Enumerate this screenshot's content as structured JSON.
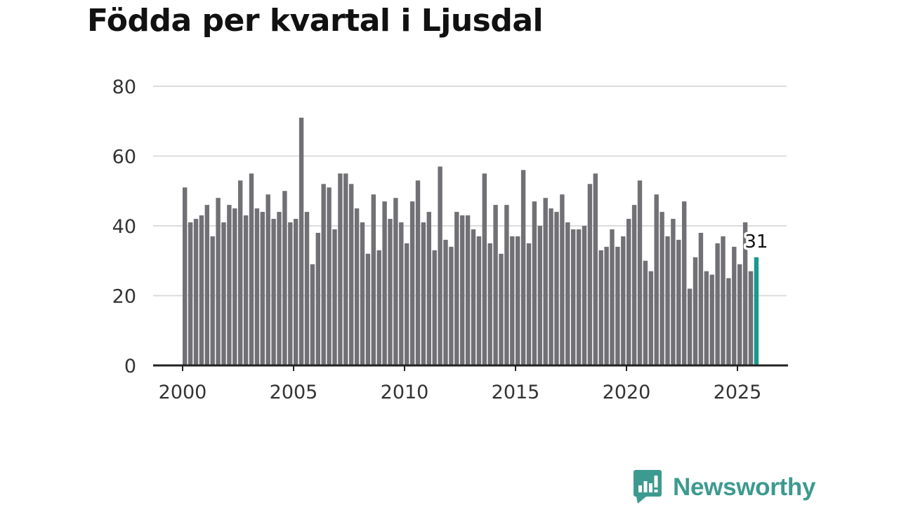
{
  "chart_data": {
    "type": "bar",
    "title": "Födda per kvartal i Ljusdal",
    "xlabel": "",
    "ylabel": "",
    "ylim": [
      0,
      80
    ],
    "yticks": [
      "0",
      "20",
      "40",
      "60",
      "80"
    ],
    "xticks": [
      "2000",
      "2005",
      "2010",
      "2015",
      "2020",
      "2025"
    ],
    "x_start_year": 2000,
    "categories": [
      "2000 Q1",
      "2000 Q2",
      "2000 Q3",
      "2000 Q4",
      "2001 Q1",
      "2001 Q2",
      "2001 Q3",
      "2001 Q4",
      "2002 Q1",
      "2002 Q2",
      "2002 Q3",
      "2002 Q4",
      "2003 Q1",
      "2003 Q2",
      "2003 Q3",
      "2003 Q4",
      "2004 Q1",
      "2004 Q2",
      "2004 Q3",
      "2004 Q4",
      "2005 Q1",
      "2005 Q2",
      "2005 Q3",
      "2005 Q4",
      "2006 Q1",
      "2006 Q2",
      "2006 Q3",
      "2006 Q4",
      "2007 Q1",
      "2007 Q2",
      "2007 Q3",
      "2007 Q4",
      "2008 Q1",
      "2008 Q2",
      "2008 Q3",
      "2008 Q4",
      "2009 Q1",
      "2009 Q2",
      "2009 Q3",
      "2009 Q4",
      "2010 Q1",
      "2010 Q2",
      "2010 Q3",
      "2010 Q4",
      "2011 Q1",
      "2011 Q2",
      "2011 Q3",
      "2011 Q4",
      "2012 Q1",
      "2012 Q2",
      "2012 Q3",
      "2012 Q4",
      "2013 Q1",
      "2013 Q2",
      "2013 Q3",
      "2013 Q4",
      "2014 Q1",
      "2014 Q2",
      "2014 Q3",
      "2014 Q4",
      "2015 Q1",
      "2015 Q2",
      "2015 Q3",
      "2015 Q4",
      "2016 Q1",
      "2016 Q2",
      "2016 Q3",
      "2016 Q4",
      "2017 Q1",
      "2017 Q2",
      "2017 Q3",
      "2017 Q4",
      "2018 Q1",
      "2018 Q2",
      "2018 Q3",
      "2018 Q4",
      "2019 Q1",
      "2019 Q2",
      "2019 Q3",
      "2019 Q4",
      "2020 Q1",
      "2020 Q2",
      "2020 Q3",
      "2020 Q4",
      "2021 Q1",
      "2021 Q2",
      "2021 Q3",
      "2021 Q4",
      "2022 Q1",
      "2022 Q2",
      "2022 Q3",
      "2022 Q4",
      "2023 Q1",
      "2023 Q2",
      "2023 Q3",
      "2023 Q4",
      "2024 Q1",
      "2024 Q2",
      "2024 Q3",
      "2024 Q4",
      "2025 Q1",
      "2025 Q2",
      "2025 Q3",
      "2025 Q4"
    ],
    "values": [
      51,
      41,
      42,
      43,
      46,
      37,
      48,
      41,
      46,
      45,
      53,
      43,
      55,
      45,
      44,
      49,
      42,
      44,
      50,
      41,
      42,
      71,
      44,
      29,
      38,
      52,
      51,
      39,
      55,
      55,
      52,
      45,
      41,
      32,
      49,
      33,
      47,
      42,
      48,
      41,
      35,
      47,
      53,
      41,
      44,
      33,
      57,
      36,
      34,
      44,
      43,
      43,
      39,
      37,
      55,
      35,
      46,
      32,
      46,
      37,
      37,
      56,
      35,
      47,
      40,
      48,
      45,
      44,
      49,
      41,
      39,
      39,
      40,
      52,
      55,
      33,
      34,
      39,
      34,
      37,
      42,
      46,
      53,
      30,
      27,
      49,
      44,
      37,
      42,
      36,
      47,
      22,
      31,
      38,
      27,
      26,
      35,
      37,
      25,
      34,
      29,
      41,
      27,
      31
    ],
    "highlight_label": "31",
    "colors": {
      "bar": "#707075",
      "highlight": "#1a9a8c",
      "grid": "#dcdcdc",
      "axis": "#222222",
      "text": "#333333"
    }
  },
  "brand": {
    "name": "Newsworthy",
    "color": "#3d9a90",
    "icon": "newsworthy-logo-icon"
  }
}
